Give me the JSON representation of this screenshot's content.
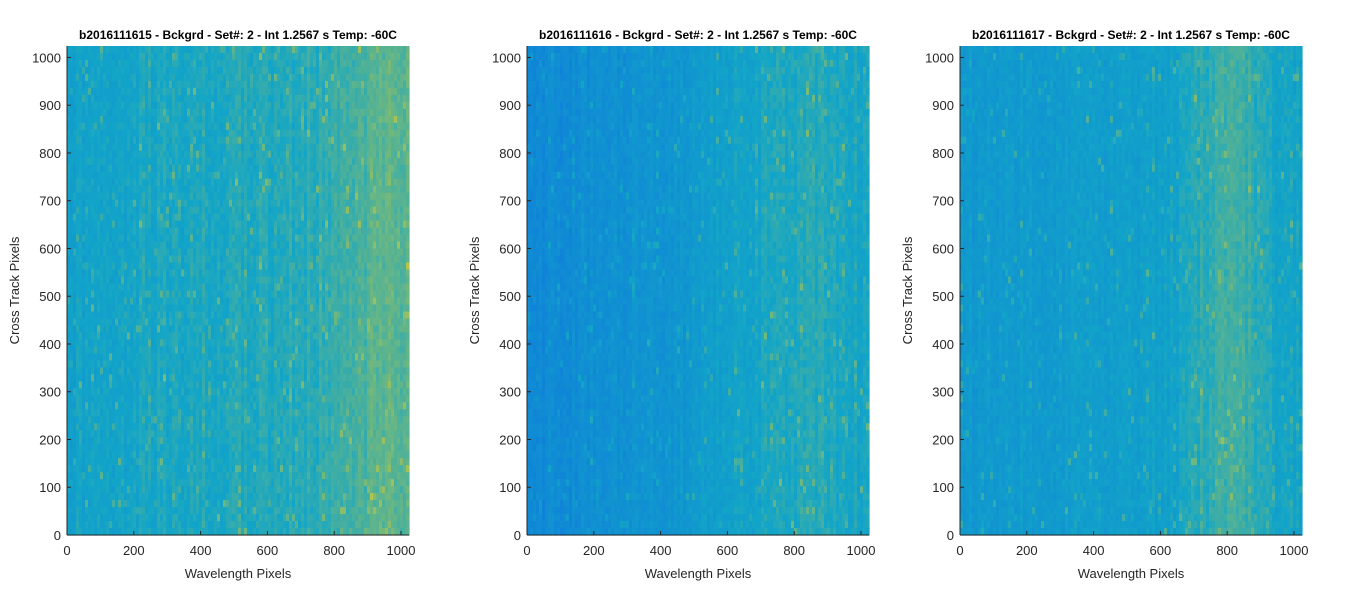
{
  "colors": {
    "low": "#0e72e0",
    "mid": "#12a5c8",
    "high": "#c8c93a",
    "axis": "#262626"
  },
  "chart_data": [
    {
      "type": "heatmap",
      "title": "b2016111615 - Bckgrd - Set#: 2 - Int 1.2567 s Temp: -60C",
      "xlabel": "Wavelength Pixels",
      "ylabel": "Cross Track Pixels",
      "xlim": [
        0,
        1024
      ],
      "ylim": [
        0,
        1024
      ],
      "xticks": [
        0,
        200,
        400,
        600,
        800,
        1000
      ],
      "yticks": [
        0,
        100,
        200,
        300,
        400,
        500,
        600,
        700,
        800,
        900,
        1000
      ],
      "column_profile": [
        0.46,
        0.48,
        0.5,
        0.5,
        0.52,
        0.52,
        0.53,
        0.54,
        0.54,
        0.55,
        0.56,
        0.58,
        0.6,
        0.66,
        0.72,
        0.7
      ]
    },
    {
      "type": "heatmap",
      "title": "b2016111616 - Bckgrd - Set#: 2 - Int 1.2567 s Temp: -60C",
      "xlabel": "Wavelength Pixels",
      "ylabel": "Cross Track Pixels",
      "xlim": [
        0,
        1024
      ],
      "ylim": [
        0,
        1024
      ],
      "xticks": [
        0,
        200,
        400,
        600,
        800,
        1000
      ],
      "yticks": [
        0,
        100,
        200,
        300,
        400,
        500,
        600,
        700,
        800,
        900,
        1000
      ],
      "column_profile": [
        0.22,
        0.24,
        0.26,
        0.28,
        0.3,
        0.32,
        0.33,
        0.36,
        0.42,
        0.48,
        0.5,
        0.52,
        0.54,
        0.55,
        0.52,
        0.5
      ]
    },
    {
      "type": "heatmap",
      "title": "b2016111617 - Bckgrd - Set#: 2 - Int 1.2567 s Temp: -60C",
      "xlabel": "Wavelength Pixels",
      "ylabel": "Cross Track Pixels",
      "xlim": [
        0,
        1024
      ],
      "ylim": [
        0,
        1024
      ],
      "xticks": [
        0,
        200,
        400,
        600,
        800,
        1000
      ],
      "yticks": [
        0,
        100,
        200,
        300,
        400,
        500,
        600,
        700,
        800,
        900,
        1000
      ],
      "column_profile": [
        0.38,
        0.38,
        0.39,
        0.4,
        0.4,
        0.41,
        0.42,
        0.43,
        0.44,
        0.46,
        0.5,
        0.6,
        0.64,
        0.56,
        0.5,
        0.48
      ]
    }
  ]
}
